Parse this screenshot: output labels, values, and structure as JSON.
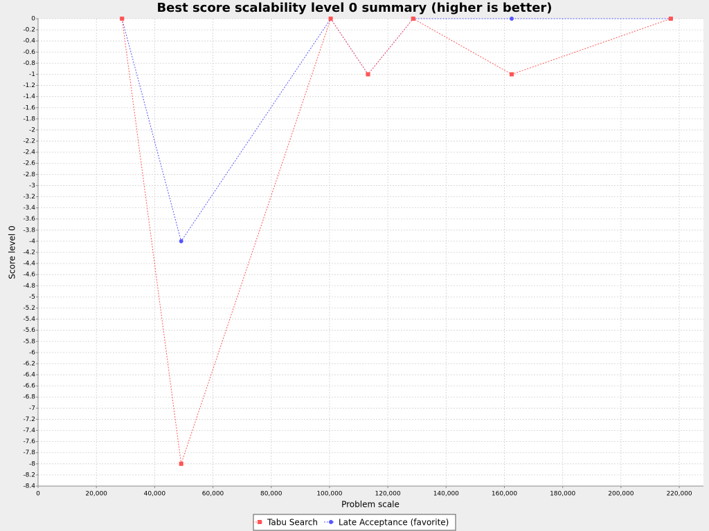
{
  "chart_data": {
    "type": "line",
    "title": "Best score scalability level 0 summary (higher is better)",
    "x_label": "Problem scale",
    "y_label": "Score level 0",
    "x": [
      28800,
      49100,
      100400,
      113200,
      128700,
      162500,
      217100
    ],
    "series": [
      {
        "name": "Tabu Search",
        "color": "#ff5555",
        "marker": "square",
        "values": [
          0,
          -8,
          0,
          -1,
          0,
          -1,
          0
        ]
      },
      {
        "name": "Late Acceptance (favorite)",
        "color": "#5555ff",
        "marker": "circle",
        "values": [
          0,
          -4,
          0,
          -1,
          0,
          0,
          0
        ]
      }
    ],
    "xlim": [
      0,
      228300
    ],
    "ylim": [
      -8.4,
      0
    ],
    "xticks": [
      0,
      {
        "value": 20000,
        "label": "20,000"
      },
      {
        "value": 40000,
        "label": "40,000"
      },
      {
        "value": 60000,
        "label": "60,000"
      },
      {
        "value": 80000,
        "label": "80,000"
      },
      {
        "value": 100000,
        "label": "100,000"
      },
      {
        "value": 120000,
        "label": "120,000"
      },
      {
        "value": 140000,
        "label": "140,000"
      },
      {
        "value": 160000,
        "label": "160,000"
      },
      {
        "value": 180000,
        "label": "180,000"
      },
      {
        "value": 200000,
        "label": "200,000"
      },
      {
        "value": 220000,
        "label": "220,000"
      }
    ],
    "yticks": [
      0,
      -0.2,
      -0.4,
      -0.6,
      -0.8,
      -1,
      -1.2,
      -1.4,
      -1.6,
      -1.8,
      -2,
      -2.2,
      -2.4,
      -2.6,
      -2.8,
      -3,
      -3.2,
      -3.4,
      -3.6,
      -3.8,
      -4,
      -4.2,
      -4.4,
      -4.6,
      -4.8,
      -5,
      -5.2,
      -5.4,
      -5.6,
      -5.8,
      -6,
      -6.2,
      -6.4,
      -6.6,
      -6.8,
      -7,
      -7.2,
      -7.4,
      -7.6,
      -7.8,
      -8,
      -8.2,
      -8.4
    ],
    "grid": true,
    "legend": "bottom"
  }
}
